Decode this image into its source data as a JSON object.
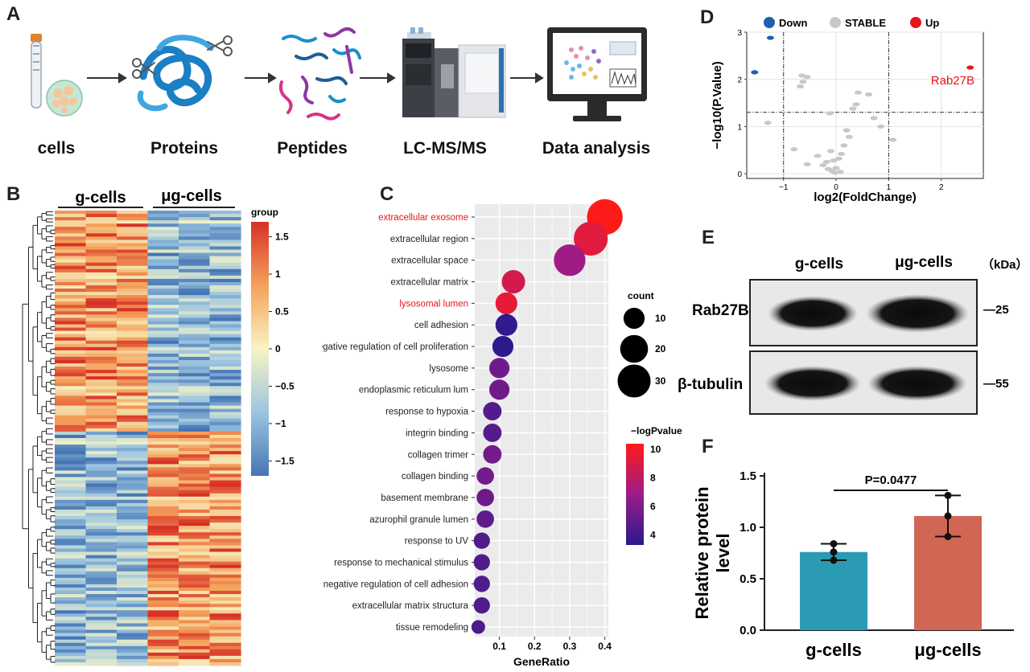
{
  "panels": {
    "A": "A",
    "B": "B",
    "C": "C",
    "D": "D",
    "E": "E",
    "F": "F"
  },
  "workflow": {
    "steps": [
      "cells",
      "Proteins",
      "Peptides",
      "LC-MS/MS",
      "Data analysis"
    ],
    "icons": [
      "cell-tube-icon",
      "protein-scissors-icon",
      "peptides-icon",
      "mass-spectrometer-icon",
      "monitor-analysis-icon"
    ]
  },
  "heatmap": {
    "groups": [
      "g-cells",
      "μg-cells"
    ],
    "legend_title": "group",
    "scale_ticks": [
      "1.5",
      "1",
      "0.5",
      "0",
      "−0.5",
      "−1",
      "−1.5"
    ],
    "colors": {
      "high": "#d73027",
      "mid": "#f7f4c4",
      "low": "#4575b4"
    }
  },
  "chart_data": [
    {
      "id": "C",
      "type": "scatter",
      "xlabel": "GeneRatio",
      "x_ticks": [
        "0.1",
        "0.2",
        "0.3",
        "0.4"
      ],
      "xlim": [
        0.03,
        0.41
      ],
      "size_legend": {
        "title": "count",
        "values": [
          "10",
          "20",
          "30"
        ]
      },
      "color_legend": {
        "title": "−logPvalue",
        "ticks": [
          "10",
          "8",
          "6",
          "4"
        ],
        "range": [
          3.3,
          10.4
        ]
      },
      "highlight_color": "#e8161c",
      "terms": [
        {
          "name": "extracellular exosome",
          "ratio": 0.4,
          "count": 36,
          "logp": 10.4,
          "highlight": true
        },
        {
          "name": "extracellular region",
          "ratio": 0.36,
          "count": 32,
          "logp": 9.3,
          "highlight": false
        },
        {
          "name": "extracellular space",
          "ratio": 0.3,
          "count": 27,
          "logp": 7.0,
          "highlight": false
        },
        {
          "name": "extracellular matrix",
          "ratio": 0.14,
          "count": 13,
          "logp": 8.8,
          "highlight": false
        },
        {
          "name": "lysosomal lumen",
          "ratio": 0.12,
          "count": 11,
          "logp": 9.5,
          "highlight": true
        },
        {
          "name": "cell adhesion",
          "ratio": 0.12,
          "count": 11,
          "logp": 3.5,
          "highlight": false
        },
        {
          "name": "negative regulation of cell proliferation",
          "ratio": 0.11,
          "count": 10,
          "logp": 3.4,
          "highlight": false
        },
        {
          "name": "lysosome",
          "ratio": 0.1,
          "count": 9,
          "logp": 5.5,
          "highlight": false
        },
        {
          "name": "endoplasmic reticulum lum",
          "ratio": 0.1,
          "count": 9,
          "logp": 5.5,
          "highlight": false
        },
        {
          "name": "response to hypoxia",
          "ratio": 0.08,
          "count": 7,
          "logp": 4.6,
          "highlight": false
        },
        {
          "name": "integrin binding",
          "ratio": 0.08,
          "count": 7,
          "logp": 4.6,
          "highlight": false
        },
        {
          "name": "collagen trimer",
          "ratio": 0.08,
          "count": 7,
          "logp": 5.6,
          "highlight": false
        },
        {
          "name": "collagen binding",
          "ratio": 0.06,
          "count": 6,
          "logp": 5.6,
          "highlight": false
        },
        {
          "name": "basement membrane",
          "ratio": 0.06,
          "count": 6,
          "logp": 5.4,
          "highlight": false
        },
        {
          "name": "azurophil granule lumen",
          "ratio": 0.06,
          "count": 6,
          "logp": 5.0,
          "highlight": false
        },
        {
          "name": "response to UV",
          "ratio": 0.05,
          "count": 5,
          "logp": 4.5,
          "highlight": false
        },
        {
          "name": "response to mechanical stimulus",
          "ratio": 0.05,
          "count": 5,
          "logp": 4.5,
          "highlight": false
        },
        {
          "name": "negative regulation of cell adhesion",
          "ratio": 0.05,
          "count": 5,
          "logp": 4.5,
          "highlight": false
        },
        {
          "name": "extracellular matrix structura",
          "ratio": 0.05,
          "count": 5,
          "logp": 4.5,
          "highlight": false
        },
        {
          "name": "tissue remodeling",
          "ratio": 0.04,
          "count": 3,
          "logp": 4.4,
          "highlight": false
        }
      ]
    },
    {
      "id": "D",
      "type": "scatter",
      "xlabel": "log2(FoldChange)",
      "ylabel": "−log10(P.Value)",
      "x_ticks": [
        "−1",
        "0",
        "1",
        "2"
      ],
      "y_ticks": [
        "0",
        "1",
        "2",
        "3"
      ],
      "xlim": [
        -1.7,
        2.8
      ],
      "ylim": [
        -0.1,
        3.0
      ],
      "legend": [
        "Down",
        "STABLE",
        "Up"
      ],
      "colors": {
        "Down": "#1f5fad",
        "STABLE": "#c8c8c8",
        "Up": "#e8161c"
      },
      "annotation": "Rab27B",
      "thresholds": {
        "x": [
          -1,
          1
        ],
        "y": 1.3
      },
      "points": [
        {
          "x": -1.25,
          "y": 2.88,
          "g": "Down"
        },
        {
          "x": -1.55,
          "y": 2.15,
          "g": "Down"
        },
        {
          "x": 2.55,
          "y": 2.25,
          "g": "Up"
        },
        {
          "x": -0.65,
          "y": 2.08,
          "g": "STABLE"
        },
        {
          "x": -0.55,
          "y": 2.05,
          "g": "STABLE"
        },
        {
          "x": -0.63,
          "y": 1.95,
          "g": "STABLE"
        },
        {
          "x": -0.68,
          "y": 1.85,
          "g": "STABLE"
        },
        {
          "x": -1.3,
          "y": 1.08,
          "g": "STABLE"
        },
        {
          "x": 0.62,
          "y": 1.68,
          "g": "STABLE"
        },
        {
          "x": 0.42,
          "y": 1.72,
          "g": "STABLE"
        },
        {
          "x": 0.38,
          "y": 1.47,
          "g": "STABLE"
        },
        {
          "x": 0.32,
          "y": 1.38,
          "g": "STABLE"
        },
        {
          "x": 0.72,
          "y": 1.18,
          "g": "STABLE"
        },
        {
          "x": 0.85,
          "y": 1.0,
          "g": "STABLE"
        },
        {
          "x": 0.2,
          "y": 0.92,
          "g": "STABLE"
        },
        {
          "x": 0.25,
          "y": 0.78,
          "g": "STABLE"
        },
        {
          "x": 1.08,
          "y": 0.72,
          "g": "STABLE"
        },
        {
          "x": 0.15,
          "y": 0.6,
          "g": "STABLE"
        },
        {
          "x": -0.8,
          "y": 0.52,
          "g": "STABLE"
        },
        {
          "x": -0.1,
          "y": 0.48,
          "g": "STABLE"
        },
        {
          "x": 0.1,
          "y": 0.42,
          "g": "STABLE"
        },
        {
          "x": -0.35,
          "y": 0.38,
          "g": "STABLE"
        },
        {
          "x": 0.05,
          "y": 0.32,
          "g": "STABLE"
        },
        {
          "x": -0.05,
          "y": 0.28,
          "g": "STABLE"
        },
        {
          "x": -0.18,
          "y": 0.25,
          "g": "STABLE"
        },
        {
          "x": -0.25,
          "y": 0.18,
          "g": "STABLE"
        },
        {
          "x": 0.0,
          "y": 0.12,
          "g": "STABLE"
        },
        {
          "x": -0.08,
          "y": 0.06,
          "g": "STABLE"
        },
        {
          "x": 0.08,
          "y": 0.04,
          "g": "STABLE"
        },
        {
          "x": -0.02,
          "y": 0.02,
          "g": "STABLE"
        },
        {
          "x": -0.15,
          "y": 0.1,
          "g": "STABLE"
        },
        {
          "x": -0.55,
          "y": 0.2,
          "g": "STABLE"
        },
        {
          "x": -0.12,
          "y": 1.28,
          "g": "STABLE"
        }
      ]
    },
    {
      "id": "F",
      "type": "bar",
      "categories": [
        "g-cells",
        "μg-cells"
      ],
      "values": [
        0.76,
        1.11
      ],
      "errors": [
        0.08,
        0.2
      ],
      "points": [
        [
          0.84,
          0.76,
          0.68
        ],
        [
          1.31,
          1.11,
          0.91
        ]
      ],
      "colors": [
        "#2b9bb4",
        "#d26654"
      ],
      "ylabel": "Relative protein\nlevel",
      "ylim": [
        0.0,
        1.5
      ],
      "y_ticks": [
        "0.0",
        "0.5",
        "1.0",
        "1.5"
      ],
      "annotation": "P=0.0477"
    }
  ],
  "western": {
    "columns": [
      "g-cells",
      "μg-cells"
    ],
    "unit": "（kDa）",
    "rows": [
      {
        "label": "Rab27B",
        "marker": "—25"
      },
      {
        "label": "β-tubulin",
        "marker": "—55"
      }
    ]
  }
}
